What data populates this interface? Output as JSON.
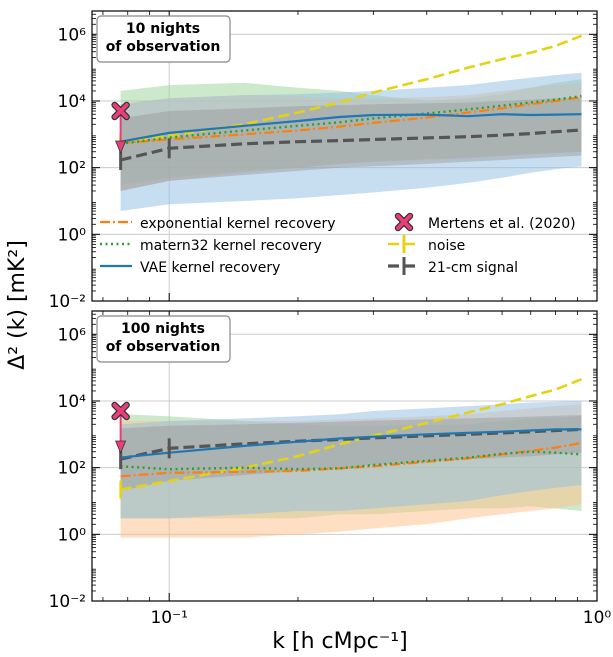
{
  "chart_data": {
    "type": "line",
    "ylabel": "Δ² (k) [mK²]",
    "xlabel": "k [h cMpc⁻¹]",
    "x_scale": "log",
    "y_scale": "log",
    "xlim": [
      0.066,
      1.0
    ],
    "ylim": [
      0.01,
      5000000
    ],
    "x_ticks": [
      {
        "value": 0.1,
        "label": "10⁻¹"
      },
      {
        "value": 1.0,
        "label": "10⁰"
      }
    ],
    "y_ticks": [
      {
        "value": 0.01,
        "label": "10⁻²"
      },
      {
        "value": 1,
        "label": "10⁰"
      },
      {
        "value": 100,
        "label": "10²"
      },
      {
        "value": 10000,
        "label": "10⁴"
      },
      {
        "value": 1000000,
        "label": "10⁶"
      }
    ],
    "grid": true,
    "legend": {
      "placement": "bottom of top panel",
      "entries": [
        {
          "series": "exp",
          "label": "exponential kernel recovery"
        },
        {
          "series": "matern",
          "label": "matern32 kernel recovery"
        },
        {
          "series": "vae",
          "label": "VAE kernel recovery"
        },
        {
          "series": "mertens",
          "label": "Mertens et al. (2020)"
        },
        {
          "series": "noise",
          "label": "noise"
        },
        {
          "series": "signal",
          "label": "21-cm signal"
        }
      ]
    },
    "colors": {
      "exp": "#ff7f0e",
      "matern": "#2ca02c",
      "vae": "#1f77b4",
      "noise": "#e5d215",
      "signal": "#555555",
      "mertens": "#e83e7a",
      "band_exp": "#ffbf8a",
      "band_matern": "#9ad39a",
      "band_vae": "#8fbde3",
      "band_signal": "#9a9a9a"
    },
    "panels": [
      {
        "title": "10 nights\nof observation",
        "x": [
          0.077,
          0.1,
          0.15,
          0.2,
          0.25,
          0.3,
          0.4,
          0.5,
          0.6,
          0.7,
          0.8,
          0.92
        ],
        "series": {
          "exp": [
            550,
            700,
            1000,
            1300,
            1700,
            2200,
            3200,
            4500,
            6000,
            8000,
            10000,
            13000
          ],
          "matern": [
            520,
            800,
            1300,
            1800,
            2300,
            3000,
            4200,
            5600,
            7200,
            9000,
            11000,
            14000
          ],
          "vae": [
            600,
            1100,
            1800,
            2500,
            3300,
            3800,
            3900,
            3500,
            4000,
            3800,
            3900,
            4000
          ],
          "noise": [
            550,
            900,
            2000,
            4500,
            9000,
            18000,
            45000,
            100000,
            180000,
            280000,
            450000,
            900000
          ],
          "signal": [
            170,
            380,
            520,
            600,
            650,
            700,
            780,
            850,
            950,
            1050,
            1200,
            1350
          ]
        },
        "signal_err_points": [
          0.077,
          0.1
        ],
        "bands": {
          "matern": {
            "low": [
              30,
              50,
              80,
              100,
              130,
              150,
              180,
              200,
              230,
              260,
              280,
              300
            ],
            "high": [
              20000,
              30000,
              35000,
              25000,
              20000,
              15000,
              10000,
              12000,
              16000,
              25000,
              35000,
              45000
            ]
          },
          "exp": {
            "low": [
              20,
              40,
              70,
              100,
              130,
              150,
              170,
              190,
              220,
              250,
              270,
              300
            ],
            "high": [
              8000,
              12000,
              15000,
              14000,
              12000,
              12000,
              13000,
              15000,
              20000,
              25000,
              30000,
              35000
            ]
          },
          "vae": {
            "low": [
              5,
              8,
              10,
              12,
              15,
              18,
              25,
              35,
              50,
              70,
              90,
              110
            ],
            "high": [
              8000,
              12000,
              15000,
              16000,
              18000,
              20000,
              25000,
              30000,
              40000,
              50000,
              60000,
              70000
            ]
          },
          "signal": {
            "low": [
              20,
              40,
              60,
              80,
              100,
              110,
              130,
              150,
              170,
              190,
              210,
              230
            ],
            "high": [
              3000,
              5000,
              6000,
              7000,
              7500,
              8000,
              8500,
              9000,
              10000,
              11000,
              12000,
              12000
            ]
          }
        },
        "mertens": {
          "x": 0.077,
          "y": 5000
        }
      },
      {
        "title": "100 nights\nof observation",
        "x": [
          0.077,
          0.1,
          0.15,
          0.2,
          0.25,
          0.3,
          0.4,
          0.5,
          0.6,
          0.7,
          0.8,
          0.92
        ],
        "series": {
          "exp": [
            55,
            70,
            75,
            80,
            95,
            110,
            150,
            190,
            250,
            320,
            400,
            550
          ],
          "matern": [
            110,
            90,
            100,
            90,
            95,
            120,
            160,
            200,
            260,
            300,
            280,
            250
          ],
          "vae": [
            200,
            280,
            450,
            600,
            750,
            850,
            1000,
            1100,
            1200,
            1300,
            1400,
            1400
          ],
          "noise": [
            22,
            40,
            100,
            220,
            500,
            900,
            2200,
            4500,
            8000,
            14000,
            22000,
            45000
          ],
          "signal": [
            180,
            380,
            520,
            620,
            700,
            780,
            900,
            1000,
            1100,
            1200,
            1300,
            1400
          ]
        },
        "signal_err_points": [
          0.077,
          0.1
        ],
        "bands": {
          "matern": {
            "low": [
              3,
              3,
              3,
              3,
              4,
              4,
              5,
              6,
              6,
              7,
              6,
              5
            ],
            "high": [
              4000,
              3500,
              2500,
              2000,
              1800,
              1800,
              1900,
              2000,
              2500,
              3000,
              3200,
              3500
            ]
          },
          "exp": {
            "low": [
              0.8,
              0.8,
              0.8,
              1,
              1.2,
              1.5,
              2,
              3,
              4,
              5,
              6,
              8
            ],
            "high": [
              2500,
              2500,
              2500,
              2500,
              2800,
              3000,
              3500,
              4000,
              5000,
              6000,
              7000,
              8000
            ]
          },
          "vae": {
            "low": [
              3,
              3,
              4,
              5,
              5,
              6,
              8,
              10,
              15,
              20,
              25,
              30
            ],
            "high": [
              2000,
              2500,
              3000,
              3500,
              4000,
              5000,
              6000,
              7000,
              8000,
              9000,
              9500,
              10000
            ]
          },
          "signal": {
            "low": [
              20,
              40,
              60,
              80,
              100,
              120,
              150,
              180,
              200,
              220,
              250,
              280
            ],
            "high": [
              1500,
              1800,
              2000,
              2200,
              2400,
              2600,
              2800,
              3000,
              3200,
              3400,
              3600,
              3800
            ]
          }
        },
        "mertens": {
          "x": 0.077,
          "y": 5000
        }
      }
    ]
  }
}
